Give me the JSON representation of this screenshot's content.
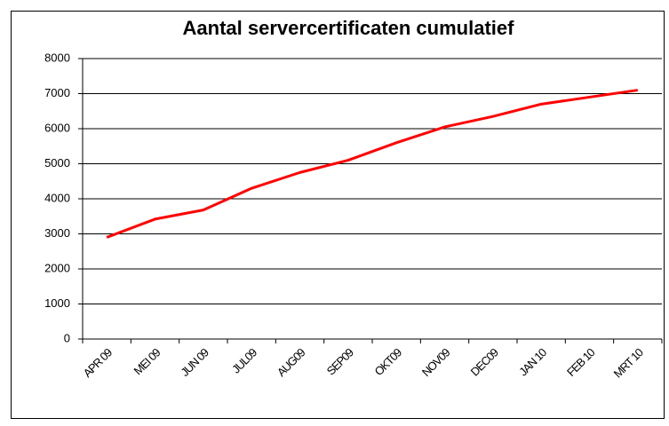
{
  "chart_data": {
    "type": "line",
    "title": "Aantal servercertificaten cumulatief",
    "categories": [
      "APR 09",
      "MEI 09",
      "JUN 09",
      "JUL09",
      "AUG09",
      "SEP09",
      "OKT09",
      "NOV09",
      "DEC09",
      "JAN 10",
      "FEB 10",
      "MRT 10"
    ],
    "values": [
      2900,
      3420,
      3680,
      4300,
      4750,
      5100,
      5600,
      6050,
      6350,
      6700,
      6900,
      7100
    ],
    "color": "#ff0000",
    "ylim": [
      0,
      8000
    ],
    "yticks": [
      0,
      1000,
      2000,
      3000,
      4000,
      5000,
      6000,
      7000,
      8000
    ],
    "grid": true
  }
}
